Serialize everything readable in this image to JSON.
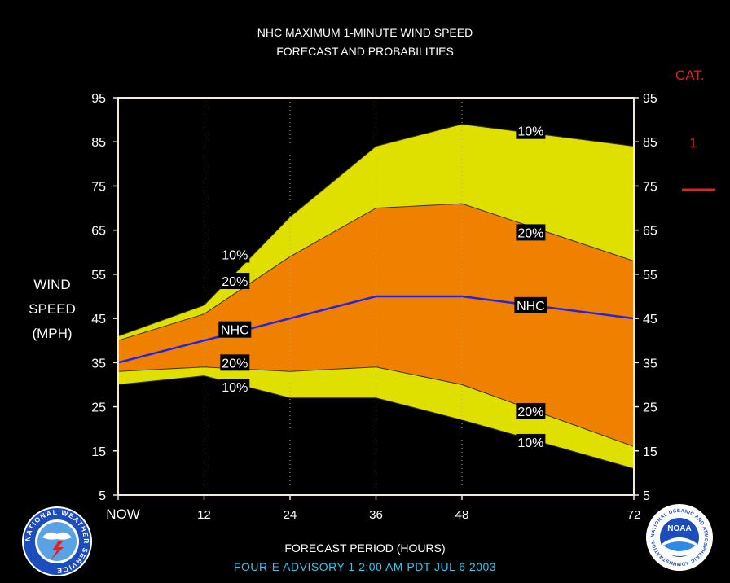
{
  "header": {
    "title_line1": "NHC MAXIMUM 1-MINUTE WIND SPEED",
    "title_line2": "FORECAST AND PROBABILITIES"
  },
  "y_axis": {
    "label_line1": "WIND",
    "label_line2": "SPEED",
    "label_line3": "(MPH)"
  },
  "x_axis": {
    "label": "FORECAST PERIOD (HOURS)"
  },
  "footer": {
    "advisory": "FOUR-E   ADVISORY  1 2:00 AM PDT JUL 6 2003"
  },
  "category_legend": {
    "heading": "CAT.",
    "value": "1",
    "line_color": "#e0211c"
  },
  "logos": {
    "left_icon": "nws-logo-icon",
    "right_icon": "noaa-logo-icon",
    "left_ring_text": "NATIONAL WEATHER SERVICE",
    "right_ring_text": "NATIONAL OCEANIC AND ATMOSPHERIC ADMINISTRATION U.S. DEPARTMENT OF COMMERCE",
    "right_center_text": "NOAA"
  },
  "chart_data": {
    "type": "area",
    "xlim": [
      0,
      72
    ],
    "ylim": [
      5,
      95
    ],
    "x_ticks": [
      0,
      12,
      24,
      36,
      48,
      72
    ],
    "x_tick_labels": [
      "NOW",
      "12",
      "24",
      "36",
      "48",
      "72"
    ],
    "y_ticks": [
      5,
      15,
      25,
      35,
      45,
      55,
      65,
      75,
      85,
      95
    ],
    "y_tick_labels": [
      "5",
      "15",
      "25",
      "35",
      "45",
      "55",
      "65",
      "75",
      "85",
      "95"
    ],
    "grid_x": [
      12,
      24,
      36,
      48
    ],
    "x": [
      0,
      12,
      24,
      36,
      48,
      72
    ],
    "series": [
      {
        "name": "10%",
        "values": [
          41,
          48,
          68,
          84,
          89,
          84
        ]
      },
      {
        "name": "20%",
        "values": [
          40,
          46,
          59,
          70,
          71,
          58
        ]
      },
      {
        "name": "NHC",
        "values": [
          35,
          40,
          45,
          50,
          50,
          45
        ]
      },
      {
        "name": "20%",
        "values": [
          33,
          34,
          33,
          34,
          30,
          16
        ]
      },
      {
        "name": "10%",
        "values": [
          30,
          32,
          27,
          27,
          22,
          11
        ]
      }
    ],
    "band_labels": [
      {
        "text": "10%",
        "x": 16.3,
        "y": 59.5
      },
      {
        "text": "20%",
        "x": 16.3,
        "y": 53.5
      },
      {
        "text": "NHC",
        "x": 16.3,
        "y": 42.5
      },
      {
        "text": "20%",
        "x": 16.3,
        "y": 35
      },
      {
        "text": "10%",
        "x": 16.3,
        "y": 29.5
      },
      {
        "text": "10%",
        "x": 57.6,
        "y": 87.5
      },
      {
        "text": "20%",
        "x": 57.6,
        "y": 64.5
      },
      {
        "text": "NHC",
        "x": 57.6,
        "y": 48
      },
      {
        "text": "20%",
        "x": 57.6,
        "y": 24
      },
      {
        "text": "10%",
        "x": 57.6,
        "y": 17
      }
    ],
    "colors": {
      "outer_band": "#e0e000",
      "inner_band": "#f08000",
      "nhc_line": "#2222ee",
      "band_edge": "#333333",
      "plot_frame": "#f4e8d8",
      "grid": "#aaaaaa"
    }
  }
}
